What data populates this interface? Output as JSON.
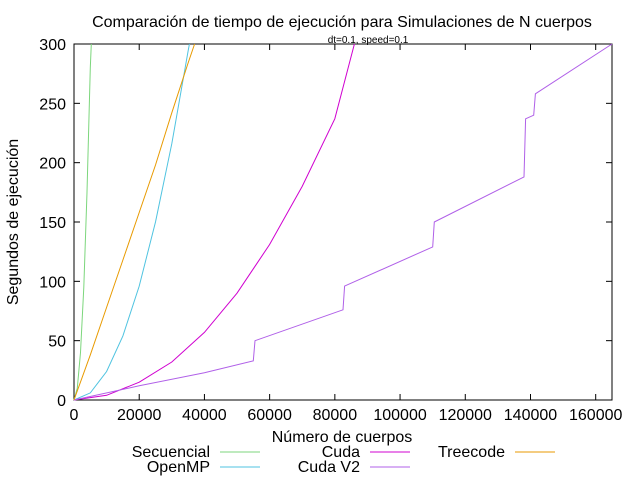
{
  "chart_data": {
    "type": "line",
    "title": "Comparación de tiempo de ejecución para Simulaciones de N cuerpos",
    "subtitle": "dt=0.1, speed=0.1",
    "xlabel": "Número de cuerpos",
    "ylabel": "Segundos de ejecución",
    "xlim": [
      0,
      165000
    ],
    "ylim": [
      0,
      300
    ],
    "x_ticks": [
      0,
      20000,
      40000,
      60000,
      80000,
      100000,
      120000,
      140000,
      160000
    ],
    "y_ticks": [
      0,
      50,
      100,
      150,
      200,
      250,
      300
    ],
    "grid": false,
    "legend_position": "bottom",
    "series": [
      {
        "name": "Secuencial",
        "color": "#7cd67c",
        "points": [
          [
            0,
            0
          ],
          [
            1000,
            10
          ],
          [
            2000,
            40
          ],
          [
            3000,
            95
          ],
          [
            4000,
            175
          ],
          [
            5000,
            280
          ],
          [
            5300,
            300
          ]
        ]
      },
      {
        "name": "OpenMP",
        "color": "#4fc3e0",
        "points": [
          [
            0,
            0
          ],
          [
            5000,
            6
          ],
          [
            10000,
            24
          ],
          [
            15000,
            54
          ],
          [
            20000,
            96
          ],
          [
            25000,
            150
          ],
          [
            30000,
            216
          ],
          [
            35000,
            294
          ],
          [
            35400,
            300
          ]
        ]
      },
      {
        "name": "Cuda",
        "color": "#d000d0",
        "points": [
          [
            0,
            0
          ],
          [
            10000,
            4
          ],
          [
            20000,
            15
          ],
          [
            30000,
            32
          ],
          [
            40000,
            57
          ],
          [
            50000,
            90
          ],
          [
            60000,
            131
          ],
          [
            70000,
            180
          ],
          [
            80000,
            237
          ],
          [
            86000,
            300
          ]
        ]
      },
      {
        "name": "Cuda V2",
        "color": "#b060e8",
        "points": [
          [
            0,
            0
          ],
          [
            20000,
            12
          ],
          [
            40000,
            23
          ],
          [
            55000,
            33
          ],
          [
            55500,
            50
          ],
          [
            82500,
            76
          ],
          [
            83000,
            96
          ],
          [
            110000,
            129
          ],
          [
            110500,
            150
          ],
          [
            138000,
            188
          ],
          [
            138500,
            237
          ],
          [
            141000,
            240
          ],
          [
            141500,
            258
          ],
          [
            165000,
            300
          ]
        ]
      },
      {
        "name": "Treecode",
        "color": "#e89a00",
        "points": [
          [
            0,
            0
          ],
          [
            5000,
            38
          ],
          [
            10000,
            78
          ],
          [
            15000,
            118
          ],
          [
            20000,
            158
          ],
          [
            25000,
            198
          ],
          [
            30000,
            242
          ],
          [
            35000,
            284
          ],
          [
            37000,
            300
          ]
        ]
      }
    ]
  }
}
